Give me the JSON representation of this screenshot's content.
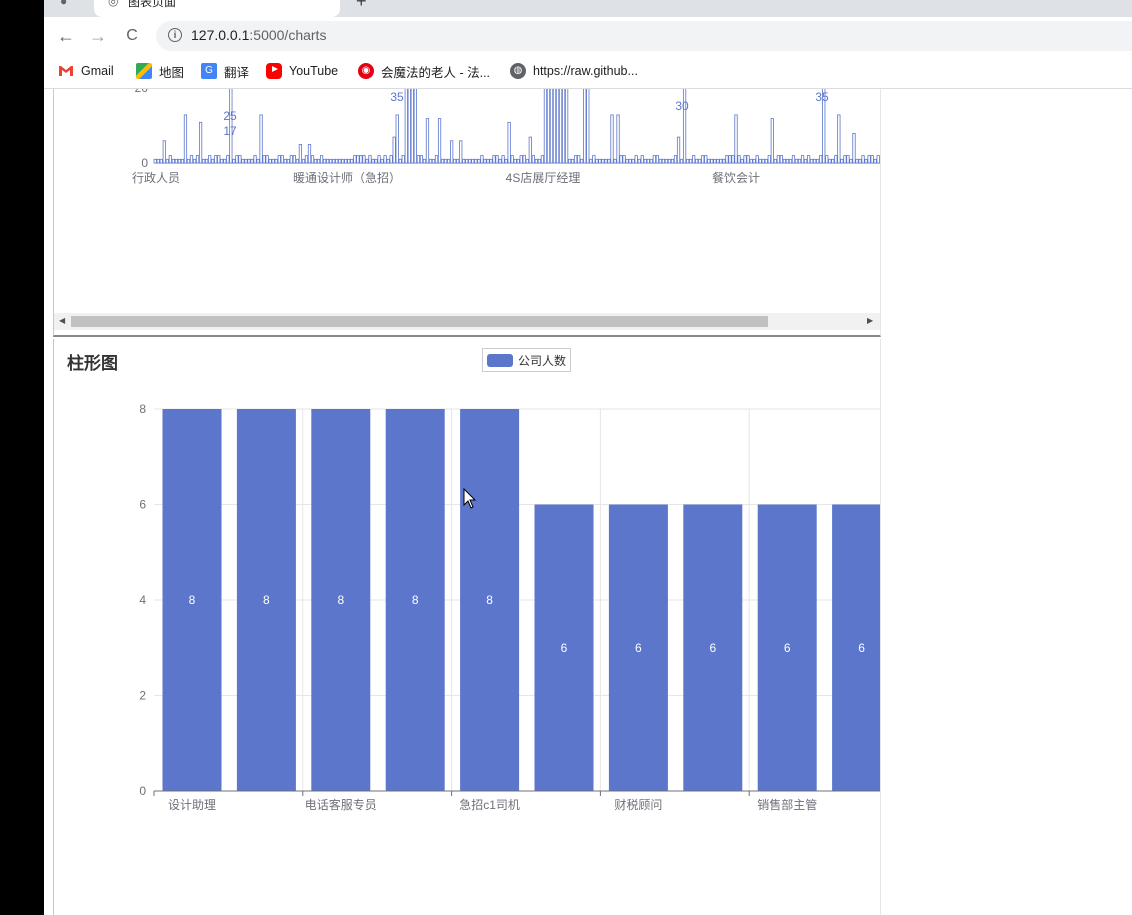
{
  "browser": {
    "tab_title": "图表页面",
    "new_tab": "+",
    "url_host": "127.0.0.1",
    "url_rest": ":5000/charts",
    "back": "←",
    "forward": "→",
    "reload": "C",
    "info": "i"
  },
  "bookmarks": [
    {
      "label": "Gmail",
      "icon": "gmail-icon"
    },
    {
      "label": "地图",
      "icon": "maps-icon"
    },
    {
      "label": "翻译",
      "icon": "translate-icon"
    },
    {
      "label": "YouTube",
      "icon": "youtube-icon"
    },
    {
      "label": "会魔法的老人 - 法...",
      "icon": "netease-music-icon"
    },
    {
      "label": "https://raw.github...",
      "icon": "globe-icon"
    }
  ],
  "top_chart": {
    "y_ticks": [
      "20",
      "0"
    ],
    "x_labels": [
      "行政人员",
      "暖通设计师（急招）",
      "4S店展厅经理",
      "餐饮会计"
    ],
    "peak_labels": [
      "35",
      "25",
      "17",
      "30",
      "35"
    ],
    "bar_color": "#5c76cc"
  },
  "bar_chart": {
    "title": "柱形图",
    "legend": "公司人数",
    "bar_color": "#5c76cc"
  },
  "chart_data": {
    "type": "bar",
    "title": "柱形图",
    "series": [
      {
        "name": "公司人数",
        "values": [
          8,
          8,
          8,
          8,
          8,
          6,
          6,
          6,
          6,
          6
        ]
      }
    ],
    "x_tick_labels": [
      "设计助理",
      "电话客服专员",
      "急招c1司机",
      "财税顾问",
      "销售部主管"
    ],
    "y_ticks": [
      "0",
      "2",
      "4",
      "6",
      "8"
    ],
    "ylim": [
      0,
      8
    ],
    "grid": true,
    "legend": "top-center"
  }
}
